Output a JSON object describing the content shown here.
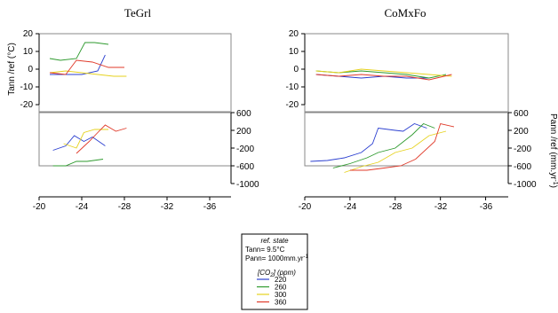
{
  "chart_data": {
    "type": "line",
    "x_axis": {
      "ticks": [
        -20,
        -24,
        -28,
        -32,
        -36
      ],
      "tick_labels": [
        "-20",
        "-24",
        "-28",
        "-32",
        "-36"
      ],
      "range": [
        -20,
        -38
      ]
    },
    "y_axes": {
      "tann": {
        "label": "Tann /ref (°C)",
        "ticks": [
          20,
          10,
          0,
          -10,
          -20
        ],
        "tick_labels": [
          "20",
          "10",
          "0",
          "-10",
          "-20"
        ],
        "range": [
          -25,
          20
        ]
      },
      "pann": {
        "label": "Pann /ref (mm.yr-1)",
        "label_main": "Pann /ref (mm.yr",
        "label_sup": "-1",
        "label_close": ")",
        "ticks": [
          600,
          200,
          -200,
          -600,
          -1000
        ],
        "tick_labels": [
          "600",
          "200",
          "-200",
          "-600",
          "-1000"
        ],
        "range": [
          -1000,
          600
        ]
      }
    },
    "series_colors": {
      "220": "#2b3fd0",
      "260": "#2e9a2e",
      "300": "#e6d21e",
      "360": "#e03a2a"
    },
    "panels": [
      {
        "title": "TeGrl",
        "tann": {
          "220": [
            [
              -21,
              -3
            ],
            [
              -22.5,
              -3
            ],
            [
              -24,
              -3
            ],
            [
              -25.5,
              -1
            ],
            [
              -26.2,
              8
            ]
          ],
          "260": [
            [
              -21,
              6
            ],
            [
              -22,
              5
            ],
            [
              -23.5,
              6
            ],
            [
              -24.3,
              15
            ],
            [
              -25.2,
              15
            ],
            [
              -26.5,
              14
            ]
          ],
          "300": [
            [
              -21,
              -2
            ],
            [
              -22.5,
              -1
            ],
            [
              -24,
              -2
            ],
            [
              -25.5,
              -3
            ],
            [
              -27,
              -4
            ],
            [
              -28.2,
              -4
            ]
          ],
          "360": [
            [
              -21,
              -2
            ],
            [
              -22.5,
              -3
            ],
            [
              -23.5,
              5
            ],
            [
              -25,
              4
            ],
            [
              -26.5,
              1
            ],
            [
              -28,
              1
            ]
          ]
        },
        "pann": {
          "220": [
            [
              -21.3,
              -250
            ],
            [
              -22.5,
              -150
            ],
            [
              -23.3,
              80
            ],
            [
              -24.2,
              -50
            ],
            [
              -25,
              50
            ],
            [
              -26.2,
              -150
            ]
          ],
          "260": [
            [
              -21.3,
              -600
            ],
            [
              -22.5,
              -600
            ],
            [
              -23.5,
              -500
            ],
            [
              -24.5,
              -500
            ],
            [
              -26,
              -450
            ]
          ],
          "300": [
            [
              -22.3,
              -100
            ],
            [
              -23.5,
              -200
            ],
            [
              -24.2,
              150
            ],
            [
              -25.2,
              220
            ],
            [
              -26.5,
              220
            ]
          ],
          "360": [
            [
              -23.5,
              -320
            ],
            [
              -24.7,
              -50
            ],
            [
              -25.5,
              150
            ],
            [
              -26.2,
              320
            ],
            [
              -27.2,
              180
            ],
            [
              -28.2,
              250
            ]
          ]
        }
      },
      {
        "title": "CoMxFo",
        "tann": {
          "220": [
            [
              -21,
              -3
            ],
            [
              -23,
              -4
            ],
            [
              -25,
              -5
            ],
            [
              -27,
              -4
            ],
            [
              -29,
              -5
            ],
            [
              -31,
              -5
            ]
          ],
          "260": [
            [
              -21,
              -1
            ],
            [
              -23,
              -2
            ],
            [
              -25,
              -1
            ],
            [
              -27,
              -2
            ],
            [
              -29,
              -3
            ],
            [
              -31,
              -5
            ],
            [
              -32.5,
              -3
            ]
          ],
          "300": [
            [
              -21,
              -1
            ],
            [
              -23,
              -2
            ],
            [
              -25,
              0
            ],
            [
              -27,
              -1
            ],
            [
              -29,
              -2
            ],
            [
              -31,
              -3
            ],
            [
              -33,
              -4
            ]
          ],
          "360": [
            [
              -21,
              -3
            ],
            [
              -23,
              -4
            ],
            [
              -25,
              -3
            ],
            [
              -27,
              -4
            ],
            [
              -29,
              -4
            ],
            [
              -31,
              -6
            ],
            [
              -33,
              -3
            ]
          ]
        },
        "pann": {
          "220": [
            [
              -20.5,
              -500
            ],
            [
              -22,
              -480
            ],
            [
              -23.5,
              -420
            ],
            [
              -25,
              -300
            ],
            [
              -26,
              -100
            ],
            [
              -26.5,
              250
            ],
            [
              -28,
              200
            ],
            [
              -28.7,
              180
            ],
            [
              -29.7,
              350
            ],
            [
              -30.8,
              250
            ]
          ],
          "260": [
            [
              -22.5,
              -650
            ],
            [
              -24,
              -550
            ],
            [
              -25.5,
              -420
            ],
            [
              -26.5,
              -300
            ],
            [
              -28,
              -200
            ],
            [
              -29.5,
              100
            ],
            [
              -30.5,
              350
            ],
            [
              -31.5,
              250
            ]
          ],
          "300": [
            [
              -23.5,
              -750
            ],
            [
              -25,
              -620
            ],
            [
              -26.5,
              -520
            ],
            [
              -28,
              -300
            ],
            [
              -29.5,
              -200
            ],
            [
              -31,
              80
            ],
            [
              -32.5,
              180
            ]
          ],
          "360": [
            [
              -24,
              -700
            ],
            [
              -25.5,
              -700
            ],
            [
              -27,
              -650
            ],
            [
              -28.5,
              -600
            ],
            [
              -29.8,
              -450
            ],
            [
              -31.5,
              -50
            ],
            [
              -32,
              350
            ],
            [
              -33.2,
              280
            ]
          ]
        }
      }
    ],
    "legend": {
      "ref_title": "ref. state",
      "tann_ref": "Tann= 9.5°C",
      "pann_ref_main": "Pann= 1000mm.yr",
      "pann_ref_sup": "-1",
      "co2_title_main": "[CO",
      "co2_title_sub": "2",
      "co2_title_rest": "] (ppm)",
      "entries": [
        "220",
        "260",
        "300",
        "360"
      ]
    }
  }
}
